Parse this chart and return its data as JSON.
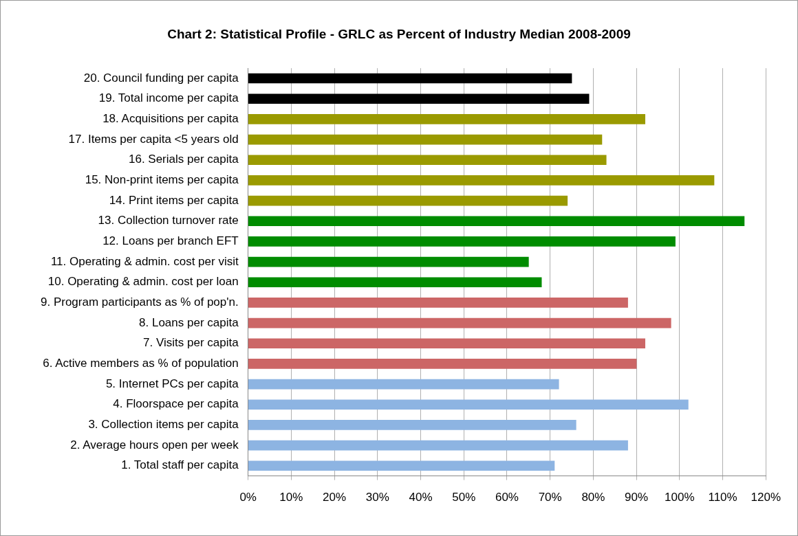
{
  "chart_data": {
    "type": "bar",
    "orientation": "horizontal",
    "title": "Chart 2: Statistical Profile - GRLC as Percent of Industry Median 2008-2009",
    "categories": [
      "20. Council funding per capita",
      "19. Total income per capita",
      "18. Acquisitions per capita",
      "17. Items per capita <5 years old",
      "16. Serials per capita",
      "15. Non-print items per capita",
      "14. Print items per capita",
      "13. Collection turnover rate",
      "12. Loans per branch EFT",
      "11. Operating & admin. cost per visit",
      "10. Operating & admin. cost per loan",
      "9. Program participants as % of pop'n.",
      "8. Loans per capita",
      "7. Visits per capita",
      "6. Active members as % of population",
      "5. Internet PCs per capita",
      "4. Floorspace per capita",
      "3. Collection items per capita",
      "2. Average hours open per week",
      "1. Total staff per capita"
    ],
    "values": [
      75,
      79,
      92,
      82,
      83,
      108,
      74,
      115,
      99,
      65,
      68,
      88,
      98,
      92,
      90,
      72,
      102,
      76,
      88,
      71
    ],
    "colors": [
      "#000000",
      "#000000",
      "#9a9a00",
      "#9a9a00",
      "#9a9a00",
      "#9a9a00",
      "#9a9a00",
      "#008c00",
      "#008c00",
      "#008c00",
      "#008c00",
      "#cc6666",
      "#cc6666",
      "#cc6666",
      "#cc6666",
      "#8db4e2",
      "#8db4e2",
      "#8db4e2",
      "#8db4e2",
      "#8db4e2"
    ],
    "xlim": [
      0,
      120
    ],
    "xticks": [
      {
        "value": 0,
        "label": "0%"
      },
      {
        "value": 10,
        "label": "10%"
      },
      {
        "value": 20,
        "label": "20%"
      },
      {
        "value": 30,
        "label": "30%"
      },
      {
        "value": 40,
        "label": "40%"
      },
      {
        "value": 50,
        "label": "50%"
      },
      {
        "value": 60,
        "label": "60%"
      },
      {
        "value": 70,
        "label": "70%"
      },
      {
        "value": 80,
        "label": "80%"
      },
      {
        "value": 90,
        "label": "90%"
      },
      {
        "value": 100,
        "label": "100%"
      },
      {
        "value": 110,
        "label": "110%"
      },
      {
        "value": 120,
        "label": "120%"
      }
    ],
    "grid": "x",
    "legend": false
  }
}
